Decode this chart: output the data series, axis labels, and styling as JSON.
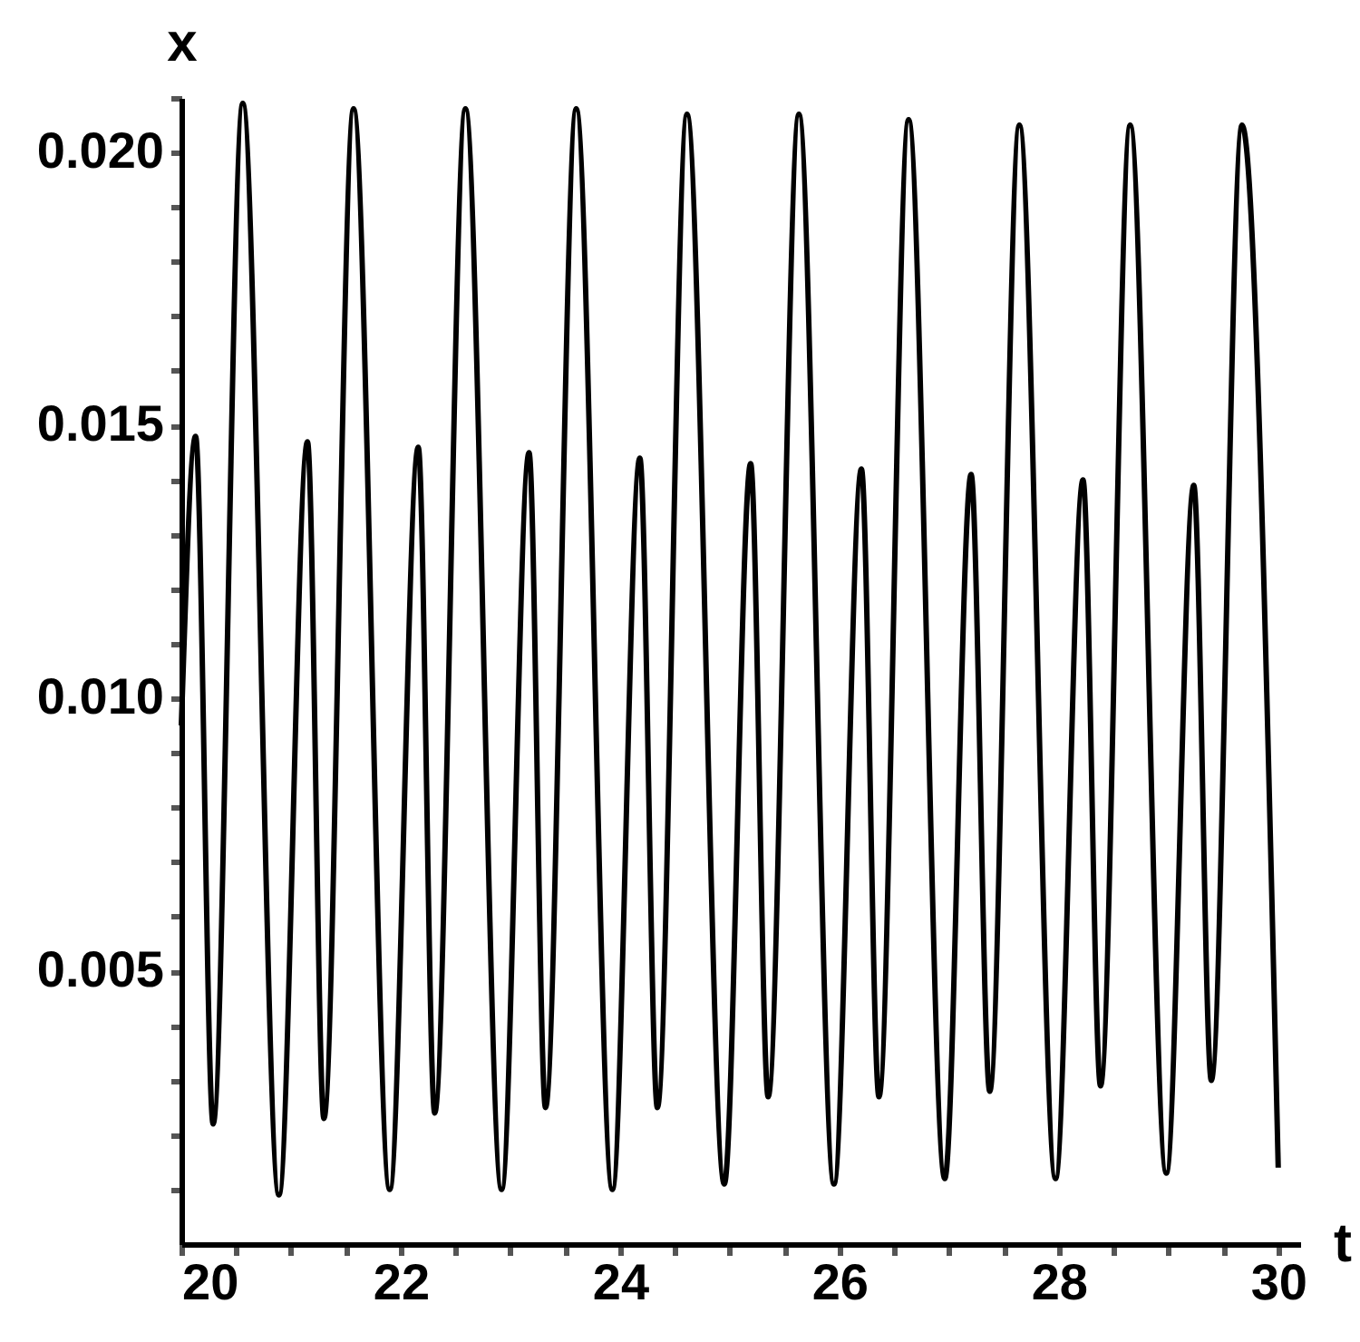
{
  "chart_data": {
    "type": "line",
    "xlabel": "t",
    "ylabel": "x",
    "x": [
      20,
      20.13,
      20.29,
      20.56,
      20.89,
      21.15,
      21.3,
      21.57,
      21.9,
      22.16,
      22.31,
      22.59,
      22.92,
      23.17,
      23.32,
      23.6,
      23.93,
      24.18,
      24.34,
      24.61,
      24.95,
      25.19,
      25.35,
      25.63,
      25.95,
      26.2,
      26.36,
      26.63,
      26.96,
      27.2,
      27.37,
      27.64,
      27.97,
      28.22,
      28.38,
      28.65,
      28.98,
      29.23,
      29.39,
      29.67,
      30
    ],
    "series": [
      {
        "color": "#000000",
        "values": [
          0.0095,
          0.0148,
          0.0022,
          0.0209,
          0.0009,
          0.0147,
          0.0023,
          0.0208,
          0.001,
          0.0146,
          0.0024,
          0.0208,
          0.001,
          0.0145,
          0.0025,
          0.0208,
          0.001,
          0.0144,
          0.0025,
          0.0207,
          0.0011,
          0.0143,
          0.0027,
          0.0207,
          0.0011,
          0.0142,
          0.0027,
          0.0206,
          0.0012,
          0.0141,
          0.0028,
          0.0205,
          0.0012,
          0.014,
          0.0029,
          0.0205,
          0.0013,
          0.0139,
          0.003,
          0.0205,
          0.0014
        ]
      }
    ],
    "xlim": [
      20,
      30.2
    ],
    "ylim": [
      0,
      0.021
    ],
    "xticks": [
      20,
      {
        "value": 20.5,
        "label": null
      },
      {
        "value": 21,
        "label": null
      },
      {
        "value": 21.5,
        "label": null
      },
      22,
      {
        "value": 22.5,
        "label": null
      },
      {
        "value": 23,
        "label": null
      },
      {
        "value": 23.5,
        "label": null
      },
      24,
      {
        "value": 24.5,
        "label": null
      },
      {
        "value": 25,
        "label": null
      },
      {
        "value": 25.5,
        "label": null
      },
      26,
      {
        "value": 26.5,
        "label": null
      },
      {
        "value": 27,
        "label": null
      },
      {
        "value": 27.5,
        "label": null
      },
      28,
      {
        "value": 28.5,
        "label": null
      },
      {
        "value": 29,
        "label": null
      },
      {
        "value": 29.5,
        "label": null
      },
      30
    ],
    "yticks": [
      {
        "value": 0.001,
        "label": null
      },
      {
        "value": 0.002,
        "label": null
      },
      {
        "value": 0.003,
        "label": null
      },
      {
        "value": 0.004,
        "label": null
      },
      {
        "value": 0.005,
        "label": "0.005"
      },
      {
        "value": 0.006,
        "label": null
      },
      {
        "value": 0.007,
        "label": null
      },
      {
        "value": 0.008,
        "label": null
      },
      {
        "value": 0.009,
        "label": null
      },
      {
        "value": 0.01,
        "label": "0.010"
      },
      {
        "value": 0.011,
        "label": null
      },
      {
        "value": 0.012,
        "label": null
      },
      {
        "value": 0.013,
        "label": null
      },
      {
        "value": 0.014,
        "label": null
      },
      {
        "value": 0.015,
        "label": "0.015"
      },
      {
        "value": 0.016,
        "label": null
      },
      {
        "value": 0.017,
        "label": null
      },
      {
        "value": 0.018,
        "label": null
      },
      {
        "value": 0.019,
        "label": null
      },
      {
        "value": 0.02,
        "label": "0.020"
      },
      {
        "value": 0.021,
        "label": null
      }
    ],
    "grid": false,
    "legend": false,
    "marker": "none",
    "line_style": "solid"
  }
}
